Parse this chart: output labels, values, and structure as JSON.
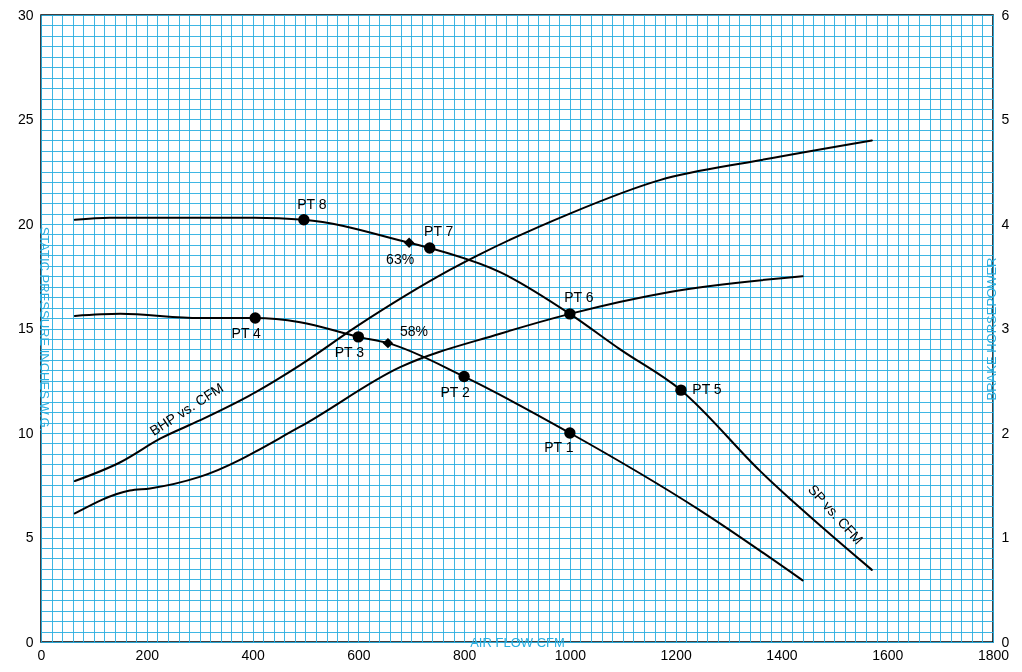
{
  "chart_data": {
    "type": "line",
    "xlabel": "AIR FLOW CFM",
    "ylabel": "STATIC PRESSURE INCHES W.G.",
    "y2label": "BRAKE HORSEPOWER",
    "xlim": [
      0,
      1800
    ],
    "xticks": [
      0,
      200,
      400,
      600,
      800,
      1000,
      1200,
      1400,
      1600,
      1800
    ],
    "ylim": [
      0,
      30
    ],
    "yticks": [
      0,
      5,
      10,
      15,
      20,
      25,
      30
    ],
    "y2lim": [
      0,
      6
    ],
    "y2ticks": [
      0,
      1,
      2,
      3,
      4,
      5,
      6
    ],
    "grid": true,
    "series": [
      {
        "color": "#000000",
        "x": [
          64,
          130,
          300,
          395,
          497,
          696,
          735,
          868,
          1000,
          1095,
          1210,
          1359,
          1571
        ],
        "values": [
          20.2,
          20.3,
          20.3,
          20.3,
          20.2,
          19.1,
          18.85,
          17.7,
          15.7,
          14.0,
          12.05,
          8.2,
          3.45
        ]
      },
      {
        "color": "#000000",
        "x": [
          64,
          150,
          300,
          405,
          490,
          600,
          656,
          800,
          1000,
          1246,
          1440
        ],
        "values": [
          15.6,
          15.7,
          15.5,
          15.5,
          15.3,
          14.6,
          14.3,
          12.7,
          10.0,
          6.3,
          2.95
        ]
      },
      {
        "axis": "y2",
        "color": "#000000",
        "x": [
          64,
          150,
          227,
          300,
          395,
          490,
          597,
          773,
          1000,
          1170,
          1359,
          1571
        ],
        "values": [
          1.54,
          1.72,
          1.95,
          2.12,
          2.36,
          2.65,
          3.02,
          3.56,
          4.1,
          4.42,
          4.61,
          4.8
        ]
      },
      {
        "axis": "y2",
        "color": "#000000",
        "x": [
          64,
          168,
          206,
          300,
          490,
          679,
          868,
          1000,
          1189,
          1440
        ],
        "values": [
          1.23,
          1.45,
          1.47,
          1.58,
          2.06,
          2.63,
          2.95,
          3.14,
          3.35,
          3.5
        ]
      },
      {
        "type": "scatter",
        "marker": "circle",
        "color": "#000000",
        "x": [
          1000,
          800,
          600,
          405,
          1210,
          1000,
          735,
          497
        ],
        "values": [
          10.0,
          12.7,
          14.6,
          15.5,
          12.05,
          15.7,
          18.85,
          20.2
        ]
      },
      {
        "type": "scatter",
        "marker": "diamond",
        "color": "#000000",
        "x": [
          696,
          656
        ],
        "values": [
          19.1,
          14.3
        ]
      }
    ],
    "annotations": [
      {
        "text": "PT 1",
        "x": 1000,
        "y": 10.0
      },
      {
        "text": "PT 2",
        "x": 800,
        "y": 12.7
      },
      {
        "text": "PT 3",
        "x": 600,
        "y": 14.6
      },
      {
        "text": "PT 4",
        "x": 405,
        "y": 15.5
      },
      {
        "text": "PT 5",
        "x": 1210,
        "y": 12.05
      },
      {
        "text": "PT 6",
        "x": 1000,
        "y": 15.7
      },
      {
        "text": "PT 7",
        "x": 735,
        "y": 18.85
      },
      {
        "text": "PT 8",
        "x": 497,
        "y": 20.2
      },
      {
        "text": "63%",
        "x": 696,
        "y": 19.1
      },
      {
        "text": "58%",
        "x": 656,
        "y": 14.3
      },
      "BHP vs. CFM",
      "SP vs. CFM"
    ]
  }
}
